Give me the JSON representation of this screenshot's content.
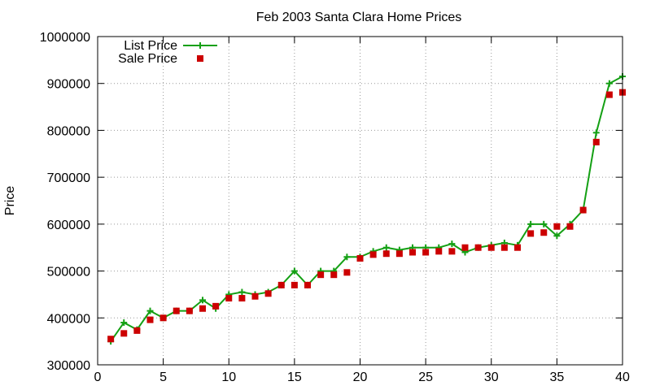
{
  "chart_data": {
    "type": "line",
    "title": "Feb 2003 Santa Clara Home Prices",
    "xlabel": "",
    "ylabel": "Price",
    "xlim": [
      0,
      40
    ],
    "ylim": [
      300000,
      1000000
    ],
    "x_ticks": [
      0,
      5,
      10,
      15,
      20,
      25,
      30,
      35,
      40
    ],
    "y_ticks": [
      300000,
      400000,
      500000,
      600000,
      700000,
      800000,
      900000,
      1000000
    ],
    "grid": true,
    "legend_position": "top-left",
    "series": [
      {
        "name": "List Price",
        "style": "line-with-plus-markers",
        "color": "#14a014",
        "x": [
          1,
          2,
          3,
          4,
          5,
          6,
          7,
          8,
          9,
          10,
          11,
          12,
          13,
          14,
          15,
          16,
          17,
          18,
          19,
          20,
          21,
          22,
          23,
          24,
          25,
          26,
          27,
          28,
          29,
          30,
          31,
          32,
          33,
          34,
          35,
          36,
          37,
          38,
          39,
          40
        ],
        "values": [
          350000,
          390000,
          375000,
          415000,
          400000,
          415000,
          415000,
          438000,
          420000,
          450000,
          455000,
          450000,
          455000,
          470000,
          500000,
          470000,
          500000,
          500000,
          530000,
          530000,
          542000,
          550000,
          545000,
          550000,
          550000,
          550000,
          558000,
          540000,
          550000,
          555000,
          560000,
          555000,
          600000,
          600000,
          575000,
          600000,
          630000,
          795000,
          900000,
          915000
        ]
      },
      {
        "name": "Sale Price",
        "style": "square-markers",
        "color": "#cc0000",
        "x": [
          1,
          2,
          3,
          4,
          5,
          6,
          7,
          8,
          9,
          10,
          11,
          12,
          13,
          14,
          15,
          16,
          17,
          18,
          19,
          20,
          21,
          22,
          23,
          24,
          25,
          26,
          27,
          28,
          29,
          30,
          31,
          32,
          33,
          34,
          35,
          36,
          37,
          38,
          39,
          40
        ],
        "values": [
          355000,
          367000,
          373000,
          396000,
          400000,
          415000,
          415000,
          420000,
          425000,
          442000,
          442000,
          446000,
          452000,
          470000,
          470000,
          470000,
          492000,
          492000,
          497000,
          527000,
          535000,
          537000,
          537000,
          540000,
          540000,
          542000,
          542000,
          550000,
          550000,
          550000,
          550000,
          550000,
          580000,
          582000,
          595000,
          595000,
          630000,
          775000,
          876000,
          881000
        ]
      }
    ]
  }
}
